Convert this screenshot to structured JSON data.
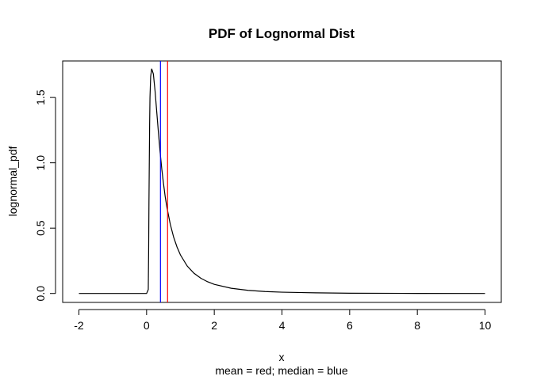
{
  "chart_data": {
    "type": "line",
    "title": "PDF of Lognormal Dist",
    "xlabel": "x",
    "sublabel": "mean = red; median = blue",
    "ylabel": "lognormal_pdf",
    "xlim": [
      -2.48,
      10.48
    ],
    "ylim": [
      -0.0684,
      1.7794
    ],
    "x_ticks": [
      -2,
      0,
      2,
      4,
      6,
      8,
      10
    ],
    "y_ticks": [
      0.0,
      0.5,
      1.0,
      1.5
    ],
    "x_tick_labels": [
      "-2",
      "0",
      "2",
      "4",
      "6",
      "8",
      "10"
    ],
    "y_tick_labels": [
      "0.0",
      "0.5",
      "1.0",
      "1.5"
    ],
    "grid": false,
    "series": [
      {
        "color": "#000000",
        "points": [
          [
            -2.0,
            0.0
          ],
          [
            0.0,
            0.0
          ],
          [
            0.05,
            0.03
          ],
          [
            0.06,
            0.3
          ],
          [
            0.07,
            0.7
          ],
          [
            0.08,
            1.0
          ],
          [
            0.09,
            1.3
          ],
          [
            0.1,
            1.5
          ],
          [
            0.12,
            1.66
          ],
          [
            0.15,
            1.72
          ],
          [
            0.2,
            1.68
          ],
          [
            0.25,
            1.55
          ],
          [
            0.3,
            1.39
          ],
          [
            0.35,
            1.23
          ],
          [
            0.4,
            1.08
          ],
          [
            0.45,
            0.95
          ],
          [
            0.5,
            0.84
          ],
          [
            0.55,
            0.74
          ],
          [
            0.6,
            0.66
          ],
          [
            0.7,
            0.53
          ],
          [
            0.8,
            0.43
          ],
          [
            0.9,
            0.355
          ],
          [
            1.0,
            0.295
          ],
          [
            1.2,
            0.21
          ],
          [
            1.4,
            0.155
          ],
          [
            1.6,
            0.117
          ],
          [
            1.8,
            0.09
          ],
          [
            2.0,
            0.07
          ],
          [
            2.5,
            0.04
          ],
          [
            3.0,
            0.024
          ],
          [
            3.5,
            0.015
          ],
          [
            4.0,
            0.01
          ],
          [
            5.0,
            0.005
          ],
          [
            6.0,
            0.002
          ],
          [
            8.0,
            0.0005
          ],
          [
            10.0,
            0.0
          ]
        ]
      }
    ],
    "vlines": [
      {
        "name": "mean",
        "x": 0.62,
        "color": "#ff0000"
      },
      {
        "name": "median",
        "x": 0.41,
        "color": "#0000ff"
      }
    ]
  }
}
